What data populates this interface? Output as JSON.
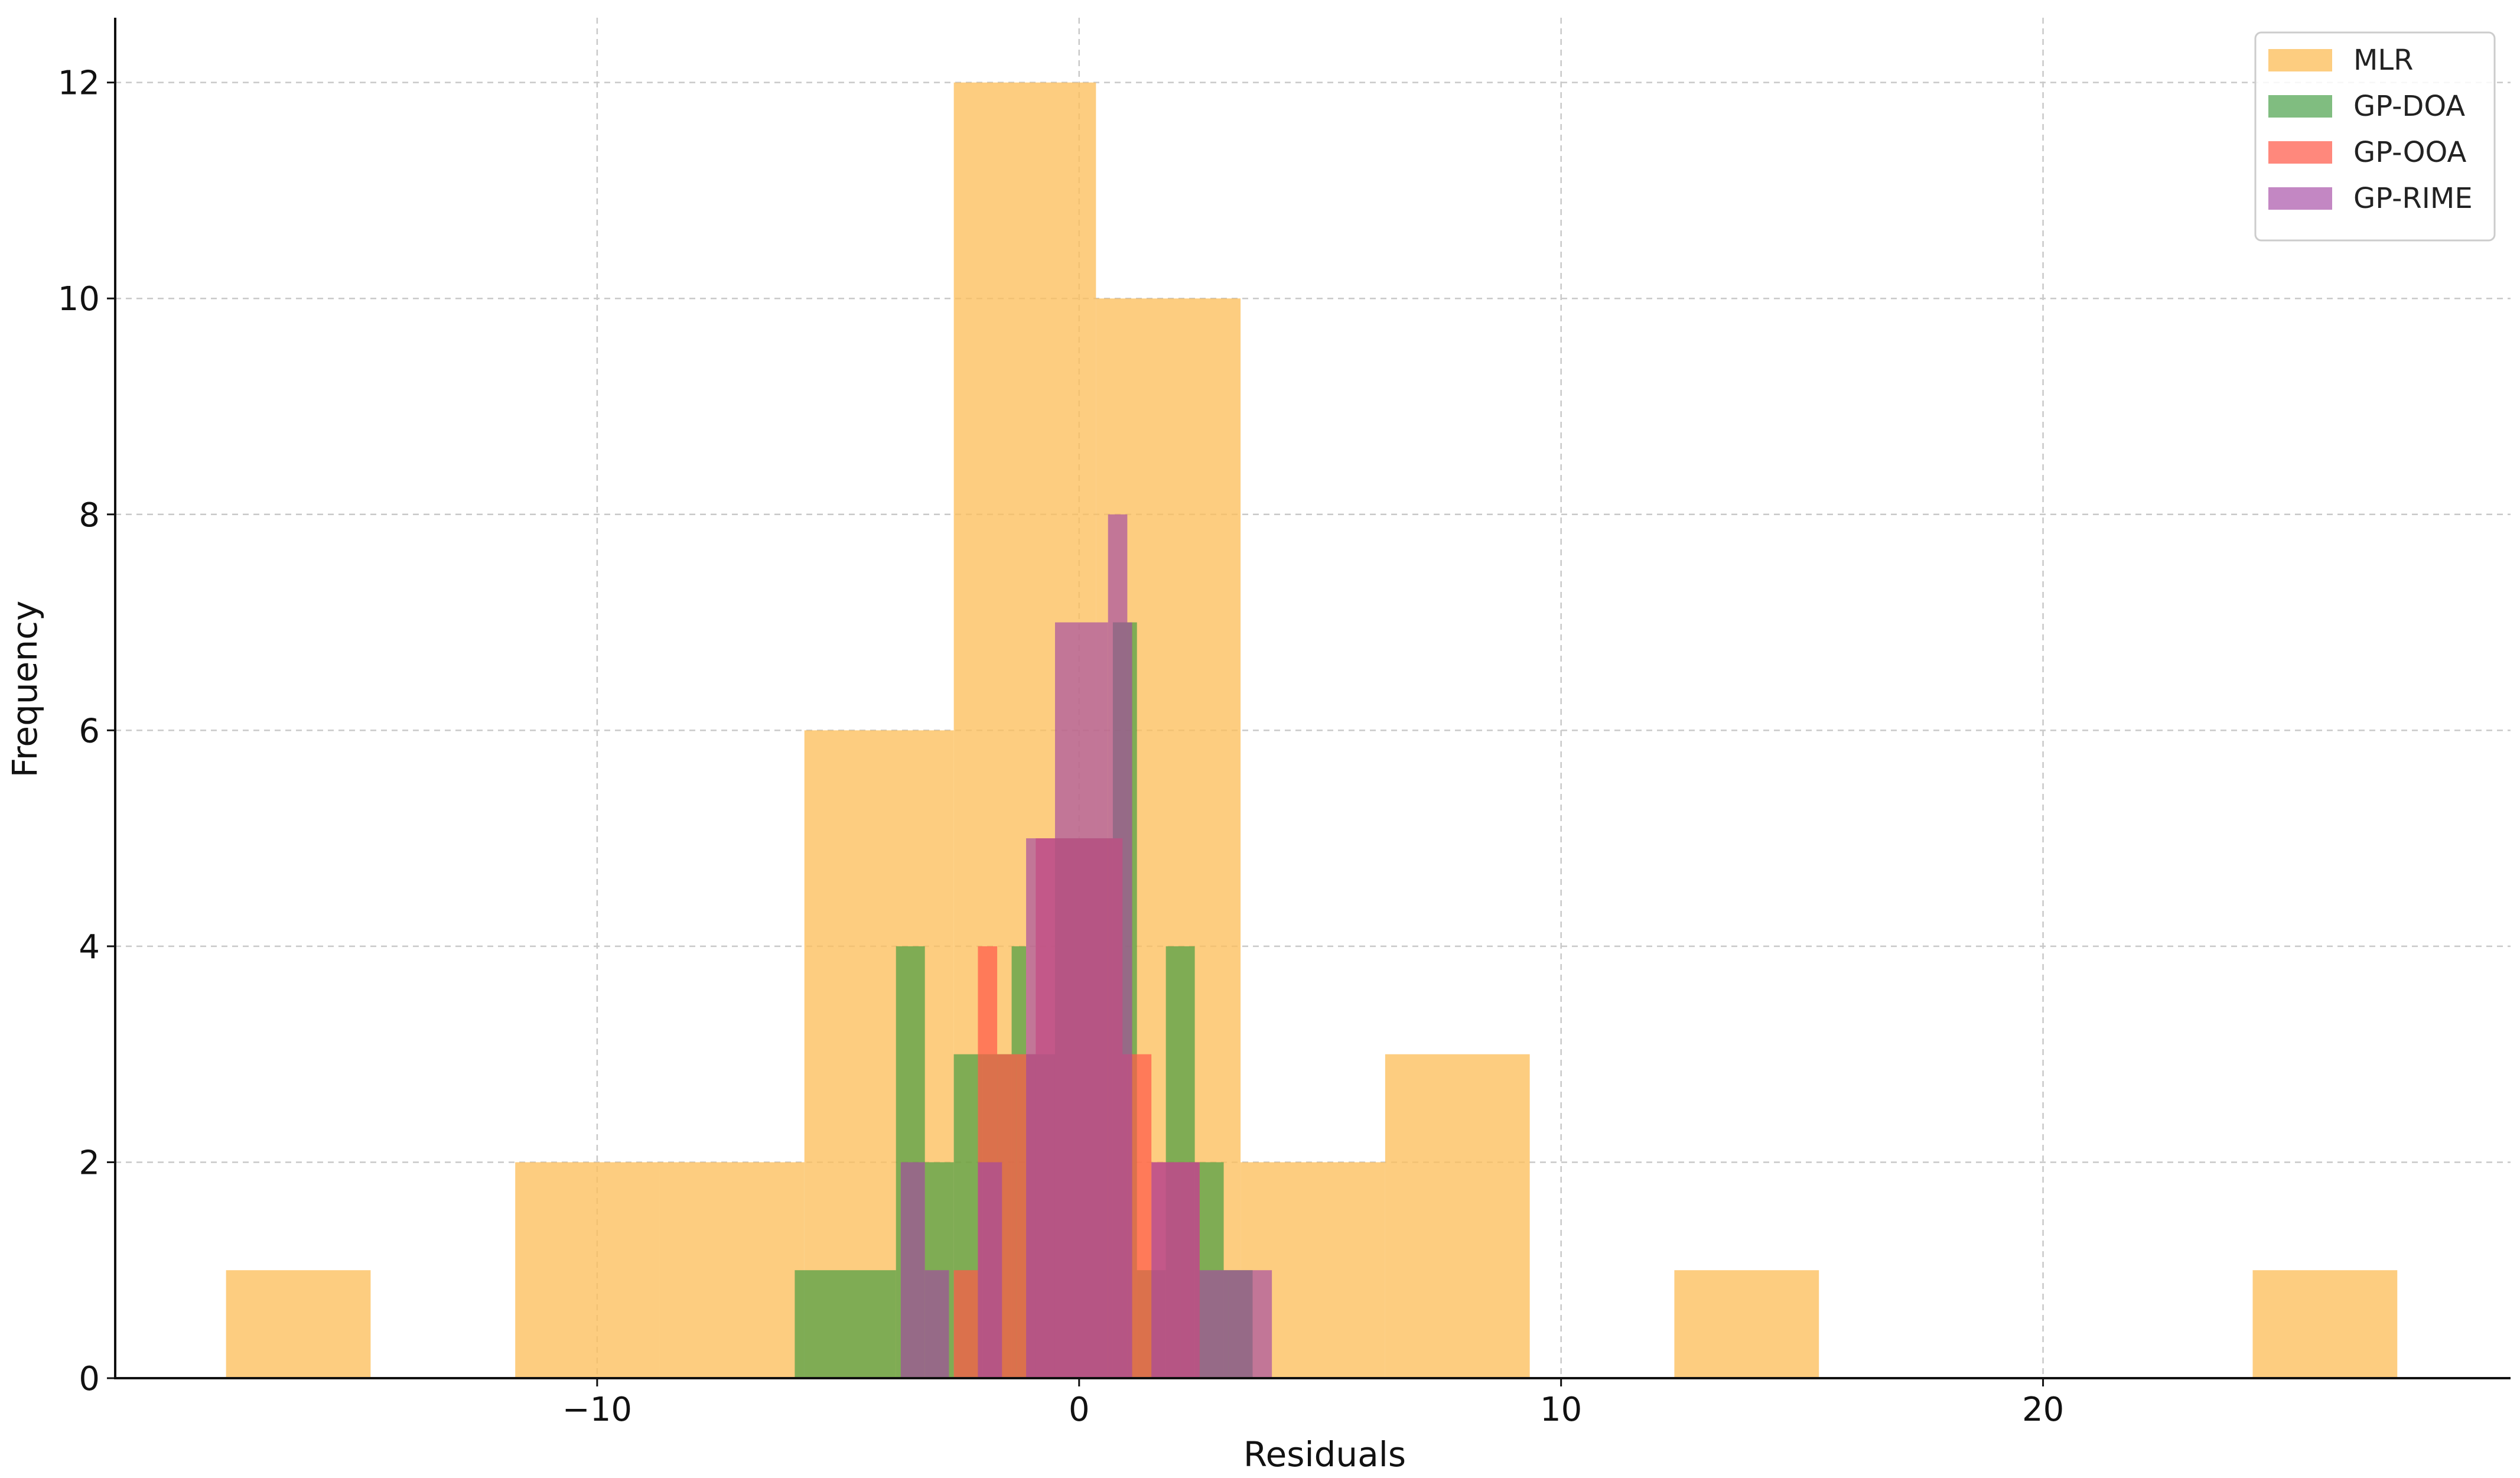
{
  "chart_data": {
    "type": "histogram",
    "xlabel": "Residuals",
    "ylabel": "Frequency",
    "xlim": [
      -20,
      29.7
    ],
    "ylim": [
      0,
      12.6
    ],
    "xticks": [
      -10,
      0,
      10,
      20
    ],
    "xtick_labels": [
      "−10",
      "0",
      "10",
      "20"
    ],
    "yticks": [
      0,
      2,
      4,
      6,
      8,
      10,
      12
    ],
    "grid": true,
    "legend_position": "top-right",
    "series": [
      {
        "name": "MLR",
        "color": "#fdbf5c",
        "opacity": 0.78,
        "bars": [
          {
            "x0": -17.7,
            "x1": -14.7,
            "count": 1
          },
          {
            "x0": -11.7,
            "x1": -8.7,
            "count": 2
          },
          {
            "x0": -8.7,
            "x1": -5.7,
            "count": 2
          },
          {
            "x0": -5.7,
            "x1": -2.6,
            "count": 6
          },
          {
            "x0": -2.6,
            "x1": 0.35,
            "count": 12
          },
          {
            "x0": 0.35,
            "x1": 3.35,
            "count": 10
          },
          {
            "x0": 3.35,
            "x1": 6.35,
            "count": 2
          },
          {
            "x0": 6.35,
            "x1": 9.35,
            "count": 3
          },
          {
            "x0": 12.35,
            "x1": 15.35,
            "count": 1
          },
          {
            "x0": 24.35,
            "x1": 27.35,
            "count": 1
          }
        ]
      },
      {
        "name": "GP-DOA",
        "color": "#3c9a3c",
        "opacity": 0.65,
        "bars": [
          {
            "x0": -5.9,
            "x1": -3.8,
            "count": 1
          },
          {
            "x0": -3.8,
            "x1": -3.2,
            "count": 4
          },
          {
            "x0": -3.2,
            "x1": -2.6,
            "count": 2
          },
          {
            "x0": -2.6,
            "x1": -2.0,
            "count": 3
          },
          {
            "x0": -2.0,
            "x1": -1.4,
            "count": 3
          },
          {
            "x0": -1.4,
            "x1": -1.1,
            "count": 4
          },
          {
            "x0": -1.1,
            "x1": -0.5,
            "count": 3
          },
          {
            "x0": -0.5,
            "x1": 0.1,
            "count": 5
          },
          {
            "x0": 0.1,
            "x1": 0.7,
            "count": 5
          },
          {
            "x0": 0.7,
            "x1": 1.2,
            "count": 7
          },
          {
            "x0": 1.2,
            "x1": 1.8,
            "count": 1
          },
          {
            "x0": 1.8,
            "x1": 2.4,
            "count": 4
          },
          {
            "x0": 2.4,
            "x1": 3.0,
            "count": 2
          },
          {
            "x0": 3.0,
            "x1": 3.6,
            "count": 1
          }
        ]
      },
      {
        "name": "GP-OOA",
        "color": "#ff5a4a",
        "opacity": 0.72,
        "bars": [
          {
            "x0": -2.6,
            "x1": -2.1,
            "count": 1
          },
          {
            "x0": -2.1,
            "x1": -1.7,
            "count": 4
          },
          {
            "x0": -1.7,
            "x1": -1.3,
            "count": 3
          },
          {
            "x0": -1.3,
            "x1": -0.9,
            "count": 3
          },
          {
            "x0": -0.9,
            "x1": -0.1,
            "count": 5
          },
          {
            "x0": -0.1,
            "x1": 0.9,
            "count": 5
          },
          {
            "x0": 0.9,
            "x1": 1.5,
            "count": 3
          },
          {
            "x0": 1.5,
            "x1": 2.1,
            "count": 2
          },
          {
            "x0": 2.1,
            "x1": 2.5,
            "count": 2
          }
        ]
      },
      {
        "name": "GP-RIME",
        "color": "#a347a3",
        "opacity": 0.65,
        "bars": [
          {
            "x0": -3.7,
            "x1": -3.2,
            "count": 2
          },
          {
            "x0": -3.2,
            "x1": -2.7,
            "count": 1
          },
          {
            "x0": -2.1,
            "x1": -1.6,
            "count": 2
          },
          {
            "x0": -1.1,
            "x1": -0.5,
            "count": 5
          },
          {
            "x0": -0.5,
            "x1": 0.6,
            "count": 7
          },
          {
            "x0": 0.6,
            "x1": 1.0,
            "count": 8
          },
          {
            "x0": 1.0,
            "x1": 1.1,
            "count": 7
          },
          {
            "x0": 1.5,
            "x1": 2.5,
            "count": 2
          },
          {
            "x0": 2.5,
            "x1": 3.1,
            "count": 1
          },
          {
            "x0": 3.1,
            "x1": 4.0,
            "count": 1
          }
        ]
      }
    ]
  }
}
